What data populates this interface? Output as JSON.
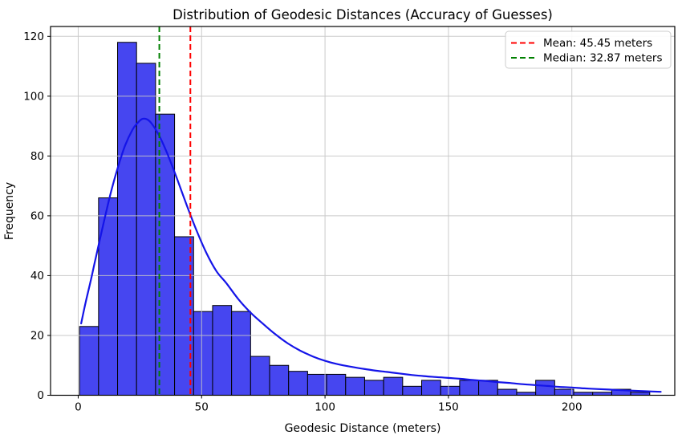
{
  "chart_data": {
    "type": "bar",
    "subtype": "histogram-with-kde",
    "title": "Distribution of Geodesic Distances (Accuracy of Guesses)",
    "xlabel": "Geodesic Distance (meters)",
    "ylabel": "Frequency",
    "x_ticks": [
      0,
      50,
      100,
      150,
      200
    ],
    "y_ticks": [
      0,
      20,
      40,
      60,
      80,
      100,
      120
    ],
    "xlim": [
      -11.2,
      241.7
    ],
    "ylim": [
      0,
      123.3
    ],
    "grid": true,
    "legend_position": "upper right",
    "histogram": {
      "bin_start_meters": 0.55,
      "bin_width_meters": 7.7,
      "counts": [
        23,
        66,
        118,
        111,
        94,
        53,
        28,
        30,
        28,
        13,
        10,
        8,
        7,
        7,
        6,
        5,
        6,
        3,
        5,
        3,
        5,
        5,
        2,
        1,
        5,
        2,
        1,
        1,
        2,
        1
      ],
      "fill_color": "#4646F0",
      "edge_color": "#000000"
    },
    "kde_curve": {
      "color": "#1414E8",
      "points": [
        [
          1.2,
          24
        ],
        [
          3,
          31
        ],
        [
          5,
          38
        ],
        [
          7,
          45.5
        ],
        [
          10,
          56.5
        ],
        [
          13,
          67
        ],
        [
          16,
          76
        ],
        [
          19,
          83.5
        ],
        [
          22,
          88.8
        ],
        [
          24,
          91
        ],
        [
          26,
          92.4
        ],
        [
          28,
          92.2
        ],
        [
          30,
          90.6
        ],
        [
          33,
          86.5
        ],
        [
          36,
          81
        ],
        [
          40,
          72.5
        ],
        [
          44,
          63.5
        ],
        [
          48,
          55
        ],
        [
          52,
          47.5
        ],
        [
          56,
          41.5
        ],
        [
          60,
          37.5
        ],
        [
          65,
          32
        ],
        [
          70,
          27.5
        ],
        [
          75,
          23.8
        ],
        [
          80,
          20.3
        ],
        [
          85,
          17.3
        ],
        [
          90,
          14.9
        ],
        [
          95,
          13
        ],
        [
          100,
          11.5
        ],
        [
          105,
          10.4
        ],
        [
          110,
          9.6
        ],
        [
          115,
          8.9
        ],
        [
          120,
          8.3
        ],
        [
          125,
          7.8
        ],
        [
          130,
          7.3
        ],
        [
          135,
          6.8
        ],
        [
          140,
          6.4
        ],
        [
          145,
          6.1
        ],
        [
          150,
          5.8
        ],
        [
          155,
          5.5
        ],
        [
          160,
          5.1
        ],
        [
          165,
          4.8
        ],
        [
          170,
          4.4
        ],
        [
          175,
          4.1
        ],
        [
          180,
          3.7
        ],
        [
          185,
          3.4
        ],
        [
          190,
          3.1
        ],
        [
          195,
          2.8
        ],
        [
          200,
          2.6
        ],
        [
          205,
          2.3
        ],
        [
          210,
          2.1
        ],
        [
          215,
          1.9
        ],
        [
          220,
          1.7
        ],
        [
          225,
          1.5
        ],
        [
          230,
          1.35
        ],
        [
          236,
          1.15
        ]
      ]
    },
    "mean_line": {
      "value_meters": 45.45,
      "label": "Mean: 45.45 meters",
      "color": "#FF0000",
      "style": "dashed"
    },
    "median_line": {
      "value_meters": 32.87,
      "label": "Median: 32.87 meters",
      "color": "#008000",
      "style": "dashed"
    },
    "grid_color": "#C5C5C5",
    "spine_color": "#000000"
  }
}
